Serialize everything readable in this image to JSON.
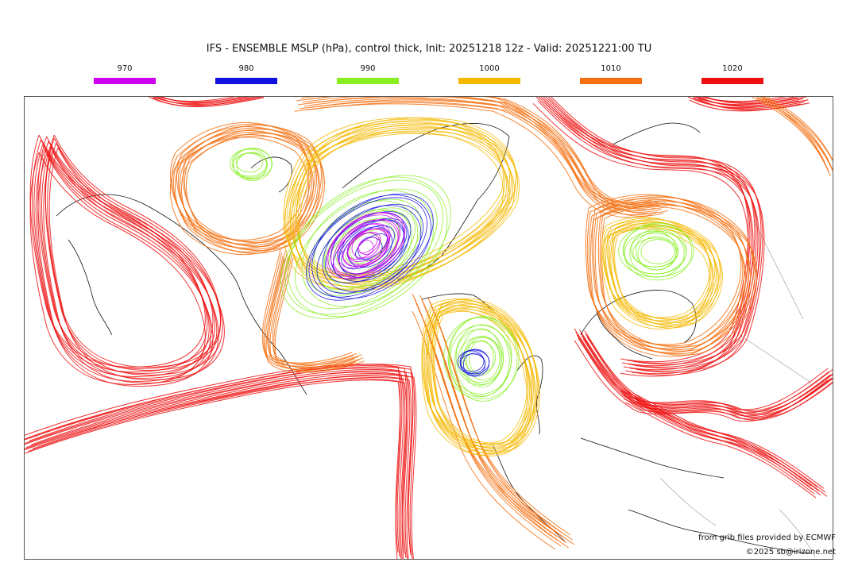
{
  "title": "IFS - ENSEMBLE MSLP (hPa), control thick, Init: 20251218 12z - Valid: 20251221:00 TU",
  "legend": [
    {
      "label": "970",
      "color": "#cc00ee"
    },
    {
      "label": "980",
      "color": "#1010e0"
    },
    {
      "label": "990",
      "color": "#88ee22"
    },
    {
      "label": "1000",
      "color": "#f5b800"
    },
    {
      "label": "1010",
      "color": "#f57010"
    },
    {
      "label": "1020",
      "color": "#ee1010"
    }
  ],
  "credits": {
    "source": "from grib files provided by ECMWF",
    "copyright": "©2025 sb@irizone.net"
  }
}
